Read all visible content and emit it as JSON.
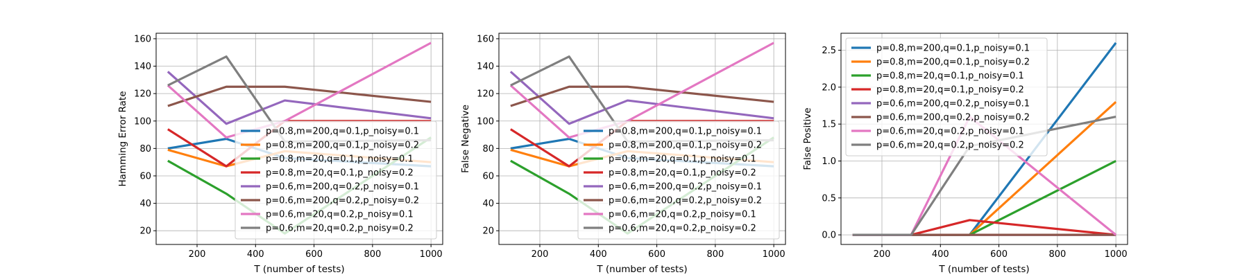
{
  "chart_data": [
    {
      "type": "line",
      "title": "",
      "xlabel": "T (number of tests)",
      "ylabel": "Hamming Error Rate",
      "xlim": [
        60,
        1040
      ],
      "ylim": [
        10,
        164
      ],
      "xticks": [
        200,
        400,
        600,
        800,
        1000
      ],
      "yticks": [
        20,
        40,
        60,
        80,
        100,
        120,
        140,
        160
      ],
      "grid": true,
      "legend_position": "lower-right",
      "x": [
        100,
        300,
        500,
        1000
      ],
      "series": [
        {
          "name": "p=0.8,m=200,q=0.1,p_noisy=0.1",
          "color": "#1f77b4",
          "values": [
            80,
            87,
            73,
            67
          ]
        },
        {
          "name": "p=0.8,m=200,q=0.1,p_noisy=0.2",
          "color": "#ff7f0e",
          "values": [
            79,
            67,
            78,
            70
          ]
        },
        {
          "name": "p=0.8,m=20,q=0.1,p_noisy=0.1",
          "color": "#2ca02c",
          "values": [
            71,
            47,
            18,
            88
          ]
        },
        {
          "name": "p=0.8,m=20,q=0.1,p_noisy=0.2",
          "color": "#d62728",
          "values": [
            94,
            67,
            100,
            100
          ]
        },
        {
          "name": "p=0.6,m=200,q=0.2,p_noisy=0.1",
          "color": "#9467bd",
          "values": [
            136,
            98,
            115,
            102
          ]
        },
        {
          "name": "p=0.6,m=200,q=0.2,p_noisy=0.2",
          "color": "#8c564b",
          "values": [
            111,
            125,
            125,
            114
          ]
        },
        {
          "name": "p=0.6,m=20,q=0.2,p_noisy=0.1",
          "color": "#e377c2",
          "values": [
            126,
            88,
            100,
            157
          ]
        },
        {
          "name": "p=0.6,m=20,q=0.2,p_noisy=0.2",
          "color": "#7f7f7f",
          "values": [
            126,
            147,
            85,
            86
          ]
        }
      ]
    },
    {
      "type": "line",
      "title": "",
      "xlabel": "T (number of tests)",
      "ylabel": "False Negative",
      "xlim": [
        60,
        1040
      ],
      "ylim": [
        10,
        164
      ],
      "xticks": [
        200,
        400,
        600,
        800,
        1000
      ],
      "yticks": [
        20,
        40,
        60,
        80,
        100,
        120,
        140,
        160
      ],
      "grid": true,
      "legend_position": "lower-right",
      "x": [
        100,
        300,
        500,
        1000
      ],
      "series": [
        {
          "name": "p=0.8,m=200,q=0.1,p_noisy=0.1",
          "color": "#1f77b4",
          "values": [
            80,
            87,
            73,
            67
          ]
        },
        {
          "name": "p=0.8,m=200,q=0.1,p_noisy=0.2",
          "color": "#ff7f0e",
          "values": [
            79,
            67,
            78,
            70
          ]
        },
        {
          "name": "p=0.8,m=20,q=0.1,p_noisy=0.1",
          "color": "#2ca02c",
          "values": [
            71,
            47,
            18,
            88
          ]
        },
        {
          "name": "p=0.8,m=20,q=0.1,p_noisy=0.2",
          "color": "#d62728",
          "values": [
            94,
            67,
            100,
            100
          ]
        },
        {
          "name": "p=0.6,m=200,q=0.2,p_noisy=0.1",
          "color": "#9467bd",
          "values": [
            136,
            98,
            115,
            102
          ]
        },
        {
          "name": "p=0.6,m=200,q=0.2,p_noisy=0.2",
          "color": "#8c564b",
          "values": [
            111,
            125,
            125,
            114
          ]
        },
        {
          "name": "p=0.6,m=20,q=0.2,p_noisy=0.1",
          "color": "#e377c2",
          "values": [
            126,
            88,
            100,
            157
          ]
        },
        {
          "name": "p=0.6,m=20,q=0.2,p_noisy=0.2",
          "color": "#7f7f7f",
          "values": [
            126,
            147,
            85,
            86
          ]
        }
      ]
    },
    {
      "type": "line",
      "title": "",
      "xlabel": "T (number of tests)",
      "ylabel": "False Positive",
      "xlim": [
        60,
        1040
      ],
      "ylim": [
        -0.13,
        2.73
      ],
      "xticks": [
        200,
        400,
        600,
        800,
        1000
      ],
      "yticks": [
        0.0,
        0.5,
        1.0,
        1.5,
        2.0,
        2.5
      ],
      "ytick_labels": [
        "0.0",
        "0.5",
        "1.0",
        "1.5",
        "2.0",
        "2.5"
      ],
      "grid": true,
      "legend_position": "upper-left",
      "x": [
        100,
        300,
        500,
        1000
      ],
      "series": [
        {
          "name": "p=0.8,m=200,q=0.1,p_noisy=0.1",
          "color": "#1f77b4",
          "values": [
            0,
            0,
            0,
            2.6
          ]
        },
        {
          "name": "p=0.8,m=200,q=0.1,p_noisy=0.2",
          "color": "#ff7f0e",
          "values": [
            0,
            0,
            0,
            1.8
          ]
        },
        {
          "name": "p=0.8,m=20,q=0.1,p_noisy=0.1",
          "color": "#2ca02c",
          "values": [
            0,
            0,
            0,
            1.0
          ]
        },
        {
          "name": "p=0.8,m=20,q=0.1,p_noisy=0.2",
          "color": "#d62728",
          "values": [
            0,
            0,
            0.2,
            0
          ]
        },
        {
          "name": "p=0.6,m=200,q=0.2,p_noisy=0.1",
          "color": "#9467bd",
          "values": [
            0,
            0,
            0,
            0
          ]
        },
        {
          "name": "p=0.6,m=200,q=0.2,p_noisy=0.2",
          "color": "#8c564b",
          "values": [
            0,
            0,
            0,
            0
          ]
        },
        {
          "name": "p=0.6,m=20,q=0.2,p_noisy=0.1",
          "color": "#e377c2",
          "values": [
            0,
            0,
            1.6,
            0
          ]
        },
        {
          "name": "p=0.6,m=20,q=0.2,p_noisy=0.2",
          "color": "#7f7f7f",
          "values": [
            0,
            0,
            1.2,
            1.6
          ]
        }
      ]
    }
  ]
}
